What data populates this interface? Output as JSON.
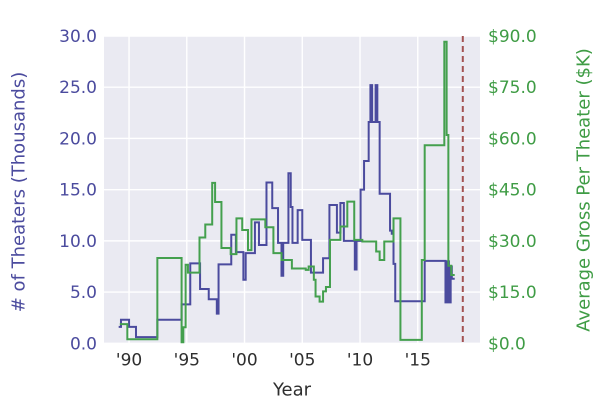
{
  "chart_data": {
    "type": "line",
    "subtype": "step-post",
    "title": "",
    "xlabel": "Year",
    "ylabel_left": "# of Theaters (Thousands)",
    "ylabel_right": "Average Gross Per Theater ($K)",
    "xlim": [
      1987.83,
      2020.39
    ],
    "ylim_left": [
      0,
      30
    ],
    "ylim_right": [
      0,
      90
    ],
    "grid": true,
    "legend": false,
    "plot_bg": "#eaeaf2",
    "grid_color": "#ffffff",
    "x_ticks": {
      "values": [
        1990,
        1995,
        2000,
        2005,
        2010,
        2015
      ],
      "labels": [
        "'90",
        "'95",
        "'00",
        "'05",
        "'10",
        "'15"
      ]
    },
    "left_ticks": {
      "values": [
        0,
        5,
        10,
        15,
        20,
        25,
        30
      ],
      "labels": [
        "0.0",
        "5.0",
        "10.0",
        "15.0",
        "20.0",
        "25.0",
        "30.0"
      ]
    },
    "right_ticks": {
      "values": [
        0,
        15,
        30,
        45,
        60,
        75,
        90
      ],
      "labels": [
        "$0.0",
        "$15.0",
        "$30.0",
        "$45.0",
        "$60.0",
        "$75.0",
        "$90.0"
      ]
    },
    "series": [
      {
        "name": "theaters_thousands",
        "axis": "left",
        "color": "#4b4b9e",
        "points": [
          [
            1989.1,
            1.6
          ],
          [
            1989.3,
            2.3
          ],
          [
            1990.0,
            1.6
          ],
          [
            1990.6,
            0.6
          ],
          [
            1992.45,
            2.3
          ],
          [
            1994.55,
            3.8
          ],
          [
            1995.3,
            7.8
          ],
          [
            1996.15,
            5.3
          ],
          [
            1996.9,
            4.3
          ],
          [
            1997.6,
            2.9
          ],
          [
            1997.75,
            7.7
          ],
          [
            1998.85,
            10.6
          ],
          [
            1999.25,
            8.9
          ],
          [
            1999.9,
            6.2
          ],
          [
            2000.1,
            8.8
          ],
          [
            2000.9,
            11.8
          ],
          [
            2001.25,
            9.6
          ],
          [
            2001.9,
            15.7
          ],
          [
            2002.4,
            13.2
          ],
          [
            2002.9,
            9.8
          ],
          [
            2003.2,
            6.6
          ],
          [
            2003.35,
            9.8
          ],
          [
            2003.8,
            16.6
          ],
          [
            2004.0,
            13.3
          ],
          [
            2004.15,
            9.8
          ],
          [
            2004.6,
            13.0
          ],
          [
            2005.0,
            10.1
          ],
          [
            2005.75,
            6.9
          ],
          [
            2006.8,
            8.3
          ],
          [
            2007.35,
            13.5
          ],
          [
            2008.0,
            10.8
          ],
          [
            2008.3,
            13.7
          ],
          [
            2008.6,
            10.0
          ],
          [
            2009.55,
            7.2
          ],
          [
            2009.7,
            10.0
          ],
          [
            2010.05,
            15.0
          ],
          [
            2010.35,
            17.8
          ],
          [
            2010.75,
            21.6
          ],
          [
            2010.9,
            25.2
          ],
          [
            2011.05,
            21.6
          ],
          [
            2011.35,
            25.2
          ],
          [
            2011.5,
            21.6
          ],
          [
            2011.7,
            14.6
          ],
          [
            2012.6,
            11.0
          ],
          [
            2012.75,
            10.7
          ],
          [
            2012.9,
            7.75
          ],
          [
            2013.05,
            4.1
          ],
          [
            2015.6,
            8.05
          ],
          [
            2017.4,
            4.0
          ],
          [
            2017.55,
            8.0
          ],
          [
            2017.7,
            4.0
          ],
          [
            2017.85,
            7.5
          ],
          [
            2017.95,
            6.3
          ],
          [
            2018.2,
            6.3
          ]
        ]
      },
      {
        "name": "avg_gross_per_theater_k",
        "axis": "right",
        "color": "#44a04e",
        "points": [
          [
            1989.2,
            5.6
          ],
          [
            1989.85,
            1.2
          ],
          [
            1992.45,
            25.0
          ],
          [
            1994.55,
            0.3
          ],
          [
            1994.7,
            4.7
          ],
          [
            1994.9,
            23.0
          ],
          [
            1995.1,
            20.7
          ],
          [
            1996.1,
            31.0
          ],
          [
            1996.6,
            34.8
          ],
          [
            1997.2,
            47.0
          ],
          [
            1997.45,
            41.4
          ],
          [
            1998.0,
            27.9
          ],
          [
            1998.8,
            26.1
          ],
          [
            1999.3,
            36.6
          ],
          [
            1999.8,
            33.2
          ],
          [
            2000.3,
            27.3
          ],
          [
            2000.6,
            36.3
          ],
          [
            2001.8,
            34.0
          ],
          [
            2002.5,
            26.4
          ],
          [
            2003.2,
            24.4
          ],
          [
            2004.1,
            21.9
          ],
          [
            2005.3,
            21.5
          ],
          [
            2005.55,
            22.5
          ],
          [
            2006.0,
            18.6
          ],
          [
            2006.15,
            13.7
          ],
          [
            2006.5,
            12.2
          ],
          [
            2006.8,
            15.2
          ],
          [
            2007.05,
            16.5
          ],
          [
            2007.4,
            30.3
          ],
          [
            2008.3,
            34.2
          ],
          [
            2008.9,
            41.5
          ],
          [
            2009.5,
            30.3
          ],
          [
            2010.2,
            29.8
          ],
          [
            2011.4,
            26.9
          ],
          [
            2011.7,
            24.4
          ],
          [
            2012.1,
            29.8
          ],
          [
            2012.9,
            36.6
          ],
          [
            2013.5,
            1.0
          ],
          [
            2015.35,
            24.4
          ],
          [
            2015.6,
            58.0
          ],
          [
            2017.3,
            88.3
          ],
          [
            2017.5,
            61.0
          ],
          [
            2017.65,
            22.7
          ],
          [
            2017.9,
            20.0
          ],
          [
            2018.2,
            20.0
          ]
        ]
      }
    ],
    "vline": {
      "x": 2018.9,
      "color": "#a35252",
      "style": "dashed"
    },
    "tick_label_color_x": "#2e2e2e",
    "tick_label_color_left": "#4b4b9e",
    "tick_label_color_right": "#3f9c45"
  }
}
